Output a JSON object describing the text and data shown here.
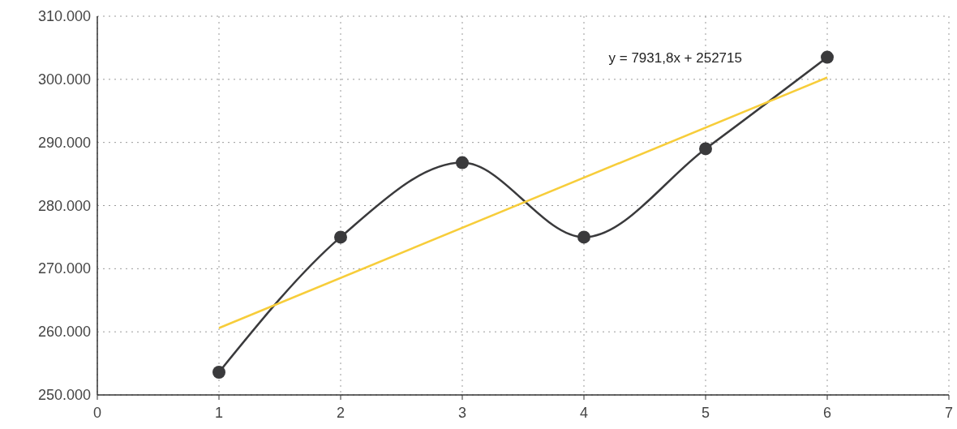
{
  "chart_data": {
    "type": "line",
    "x": [
      1,
      2,
      3,
      4,
      5,
      6
    ],
    "series": [
      {
        "color": "#3a3a3c",
        "values": [
          253600,
          275000,
          286800,
          275000,
          289000,
          303500
        ],
        "marker": "circle"
      },
      {
        "color": "#f7cd3a",
        "x": [
          1,
          6
        ],
        "values": [
          260600,
          300300
        ],
        "marker": "none"
      }
    ],
    "xlim": [
      0,
      7
    ],
    "xticks": [
      0,
      1,
      2,
      3,
      4,
      5,
      6,
      7
    ],
    "ylim": [
      250000,
      310000
    ],
    "yticks": [
      {
        "value": 250000,
        "label": "250.000"
      },
      {
        "value": 260000,
        "label": "260.000"
      },
      {
        "value": 270000,
        "label": "270.000"
      },
      {
        "value": 280000,
        "label": "280.000"
      },
      {
        "value": 290000,
        "label": "290.000"
      },
      {
        "value": 300000,
        "label": "300.000"
      },
      {
        "value": 310000,
        "label": "310.000"
      }
    ],
    "grid": true,
    "line_style": "solid",
    "annotations": [
      "y = 7931,8x + 252715"
    ]
  }
}
